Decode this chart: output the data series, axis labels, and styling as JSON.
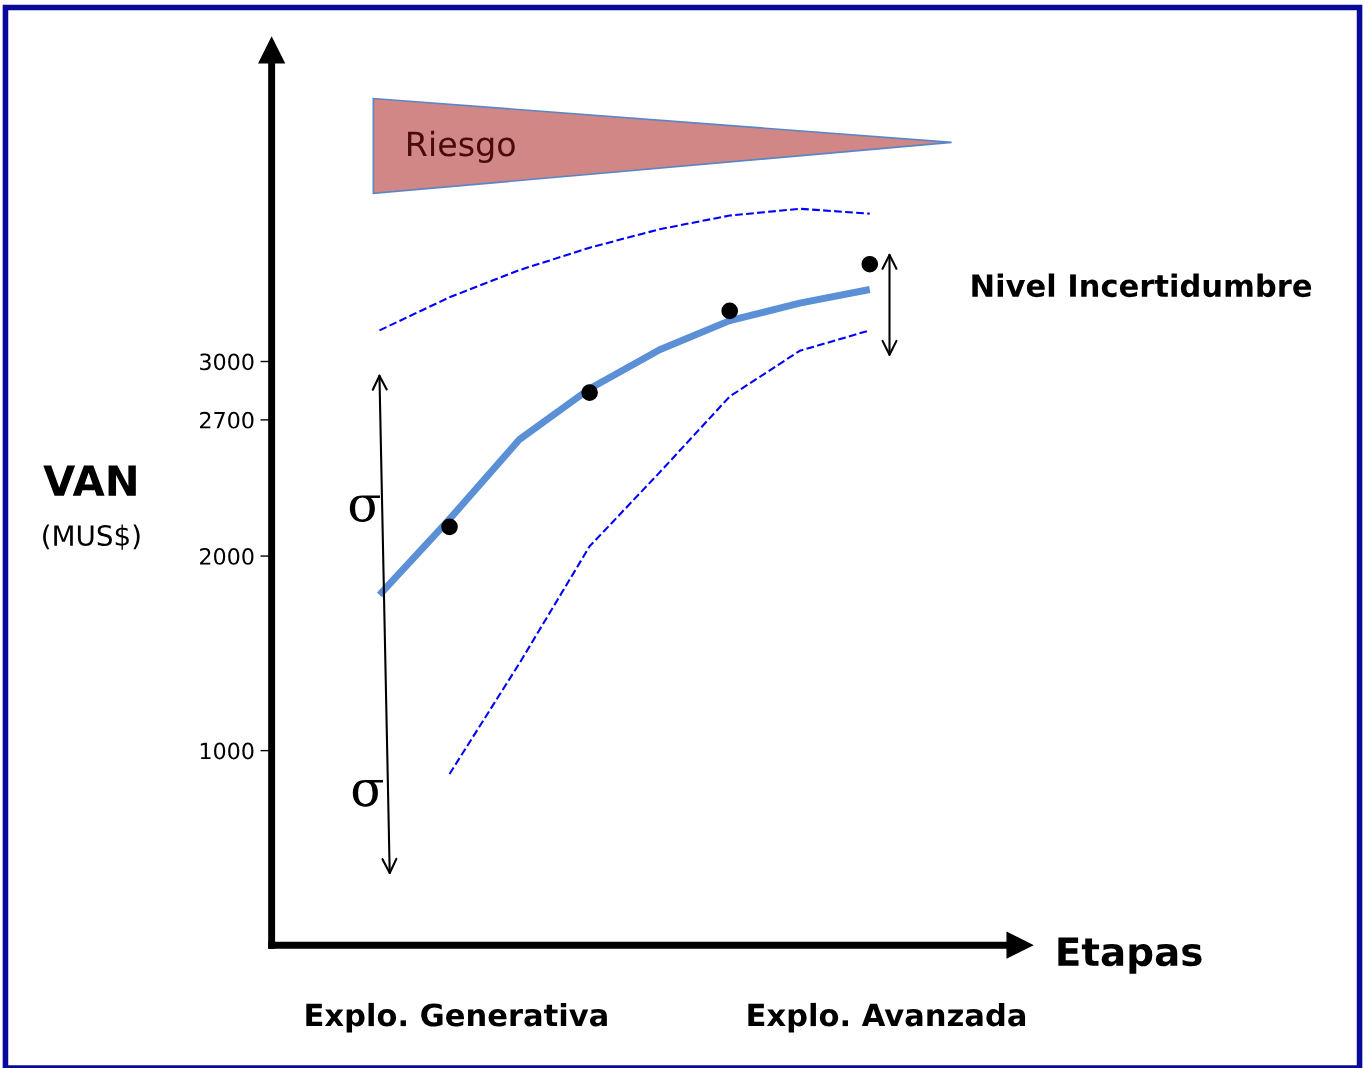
{
  "chart_data": {
    "type": "line",
    "xlabel": "Etapas",
    "ylabel": "VAN\n(MUS$)",
    "categories": [
      null,
      null,
      null,
      null,
      null,
      null,
      null,
      null
    ],
    "ylim": [
      0,
      4600
    ],
    "yticks": [
      1000,
      2000,
      2700,
      3000
    ],
    "grid": false,
    "series": [
      {
        "color": "#0000ff",
        "line_style": "dashed",
        "values": [
          3160,
          3330,
          3470,
          3585,
          3680,
          3750,
          3785,
          3760
        ]
      },
      {
        "color": "#0000ff",
        "line_style": "dashed",
        "values": [
          null,
          880,
          1450,
          2050,
          2430,
          2820,
          3055,
          3160
        ]
      },
      {
        "color": "#5b8fd6",
        "line_style": "solid",
        "values": [
          1800,
          2190,
          2600,
          2860,
          3060,
          3210,
          3300,
          3370
        ]
      },
      {
        "type": "scatter",
        "color": "#000000",
        "marker": "circle",
        "values": [
          null,
          2150,
          null,
          2840,
          null,
          3260,
          null,
          3500
        ]
      }
    ],
    "annotations": [
      "Riesgo",
      "σ",
      "σ",
      "Nivel Incertidumbre",
      "Explo. Generativa",
      "Explo. Avanzada"
    ]
  }
}
